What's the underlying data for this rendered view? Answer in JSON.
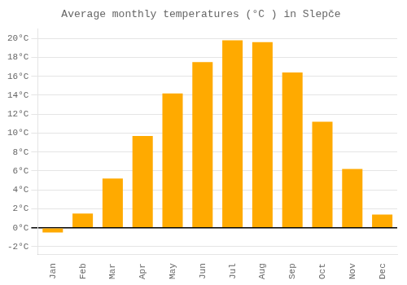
{
  "chart_data": {
    "type": "bar",
    "title": "Average monthly temperatures (°C ) in Slepče",
    "categories": [
      "Jan",
      "Feb",
      "Mar",
      "Apr",
      "May",
      "Jun",
      "Jul",
      "Aug",
      "Sep",
      "Oct",
      "Nov",
      "Dec"
    ],
    "values": [
      -0.5,
      1.5,
      5.2,
      9.7,
      14.2,
      17.5,
      19.8,
      19.6,
      16.4,
      11.2,
      6.2,
      1.4
    ],
    "color": "#FFAA00",
    "ylim": [
      -2.8,
      21.0
    ],
    "yticks": [
      {
        "value": -2,
        "label": "-2°C"
      },
      {
        "value": 0,
        "label": "0°C"
      },
      {
        "value": 2,
        "label": "2°C"
      },
      {
        "value": 4,
        "label": "4°C"
      },
      {
        "value": 6,
        "label": "6°C"
      },
      {
        "value": 8,
        "label": "8°C"
      },
      {
        "value": 10,
        "label": "10°C"
      },
      {
        "value": 12,
        "label": "12°C"
      },
      {
        "value": 14,
        "label": "14°C"
      },
      {
        "value": 16,
        "label": "16°C"
      },
      {
        "value": 18,
        "label": "18°C"
      },
      {
        "value": 20,
        "label": "20°C"
      }
    ],
    "grid": true
  }
}
